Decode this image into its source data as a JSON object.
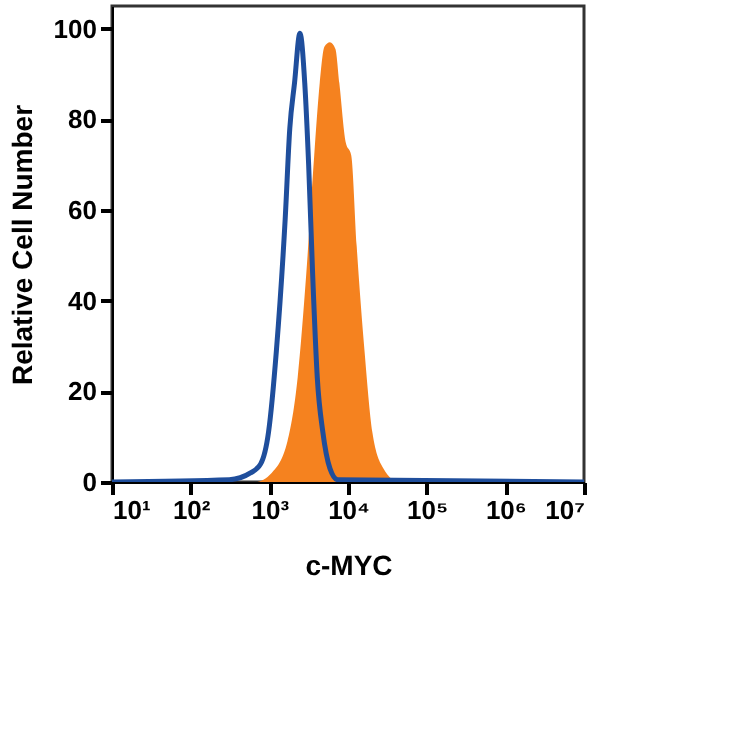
{
  "chart_data": {
    "type": "area",
    "xlabel": "c-MYC",
    "ylabel": "Relative Cell Number",
    "log": "x",
    "xlim": [
      10,
      10000000
    ],
    "ylim": [
      0,
      105
    ],
    "xticks": [
      {
        "value": 10,
        "label": "10¹"
      },
      {
        "value": 100,
        "label": "10²"
      },
      {
        "value": 1000,
        "label": "10³"
      },
      {
        "value": 10000,
        "label": "10⁴"
      },
      {
        "value": 100000,
        "label": "10⁵"
      },
      {
        "value": 1000000,
        "label": "10⁶"
      },
      {
        "value": 10000000,
        "label": "10⁷"
      }
    ],
    "yticks": [
      0,
      20,
      40,
      60,
      80,
      100
    ],
    "grid": false,
    "series": [
      {
        "color": "#f5821f",
        "x": [
          10,
          661,
          1070,
          1700,
          2290,
          2950,
          3720,
          4370,
          5010,
          5890,
          6920,
          7760,
          9330,
          11000,
          12900,
          16200,
          20400,
          28200,
          44700,
          10000000
        ],
        "values": [
          0,
          0,
          2,
          9,
          23,
          46,
          72,
          88,
          96,
          97,
          95.5,
          88,
          75,
          72,
          52,
          29,
          11,
          3,
          0,
          0
        ]
      },
      {
        "type": "line",
        "color": "#1f4e9c",
        "x": [
          10,
          309,
          575,
          776,
          977,
          1230,
          1590,
          1820,
          2090,
          2450,
          2820,
          3160,
          3550,
          4070,
          4790,
          5890,
          7410,
          10000000
        ],
        "values": [
          0,
          0.5,
          2,
          4,
          11,
          29,
          58,
          78,
          88,
          99,
          88,
          70,
          46,
          23,
          11,
          3,
          0.5,
          0
        ]
      }
    ]
  }
}
